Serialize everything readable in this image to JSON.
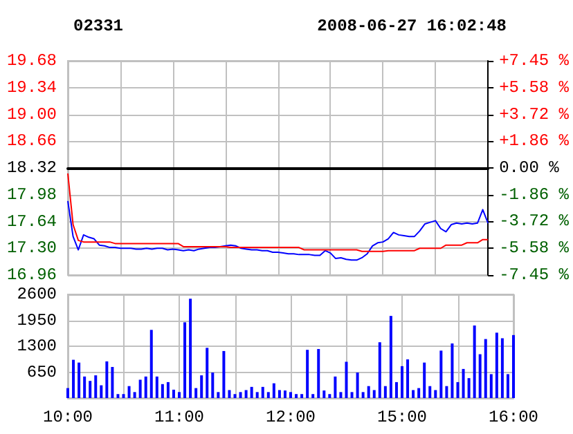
{
  "chart_data": [
    {
      "type": "line",
      "title": "02331",
      "subtitle": "2008-06-27 16:02:48",
      "categories": [
        null,
        null,
        null,
        null,
        null,
        null,
        null,
        null,
        null,
        null,
        null,
        null,
        null,
        null,
        null,
        null,
        null,
        null,
        null,
        null,
        null,
        null,
        null,
        null,
        null,
        null,
        null,
        null,
        null,
        null,
        null,
        null,
        null,
        null,
        null,
        null,
        null,
        null,
        null,
        null,
        null,
        null,
        null,
        null,
        null,
        null,
        null,
        null,
        null,
        null,
        null,
        null,
        null,
        null,
        null,
        null,
        null,
        null,
        null,
        null,
        null,
        null,
        null,
        null,
        null,
        null,
        null,
        null,
        null,
        null,
        null,
        null,
        null,
        null,
        null,
        null,
        null,
        null,
        null,
        null,
        null
      ],
      "series": [
        {
          "color": "#0000ff",
          "values": [
            17.9,
            17.45,
            17.28,
            17.47,
            17.44,
            17.42,
            17.34,
            17.33,
            17.31,
            17.31,
            17.3,
            17.3,
            17.3,
            17.29,
            17.29,
            17.3,
            17.29,
            17.3,
            17.3,
            17.28,
            17.29,
            17.28,
            17.27,
            17.28,
            17.27,
            17.29,
            17.3,
            17.31,
            17.31,
            17.32,
            17.33,
            17.34,
            17.33,
            17.3,
            17.29,
            17.28,
            17.28,
            17.27,
            17.27,
            17.25,
            17.25,
            17.24,
            17.23,
            17.23,
            17.22,
            17.22,
            17.22,
            17.21,
            17.21,
            17.27,
            17.24,
            17.17,
            17.18,
            17.16,
            17.15,
            17.15,
            17.18,
            17.23,
            17.33,
            17.37,
            17.38,
            17.42,
            17.5,
            17.47,
            17.46,
            17.45,
            17.45,
            17.52,
            17.61,
            17.63,
            17.65,
            17.55,
            17.51,
            17.6,
            17.62,
            17.61,
            17.62,
            17.61,
            17.62,
            17.79,
            17.62
          ]
        },
        {
          "color": "#ff0000",
          "values": [
            18.25,
            17.6,
            17.4,
            17.38,
            17.38,
            17.38,
            17.38,
            17.38,
            17.38,
            17.36,
            17.36,
            17.36,
            17.36,
            17.36,
            17.36,
            17.36,
            17.36,
            17.36,
            17.36,
            17.36,
            17.36,
            17.36,
            17.32,
            17.32,
            17.32,
            17.32,
            17.32,
            17.32,
            17.32,
            17.32,
            17.32,
            17.31,
            17.31,
            17.31,
            17.31,
            17.31,
            17.31,
            17.31,
            17.31,
            17.31,
            17.31,
            17.31,
            17.31,
            17.31,
            17.31,
            17.28,
            17.28,
            17.28,
            17.28,
            17.28,
            17.28,
            17.28,
            17.28,
            17.28,
            17.28,
            17.28,
            17.26,
            17.26,
            17.26,
            17.26,
            17.26,
            17.27,
            17.27,
            17.27,
            17.27,
            17.27,
            17.27,
            17.3,
            17.3,
            17.3,
            17.3,
            17.3,
            17.34,
            17.34,
            17.34,
            17.34,
            17.37,
            17.37,
            17.37,
            17.41,
            17.41
          ]
        }
      ],
      "ylim": [
        16.96,
        19.68
      ],
      "yticks": [
        16.96,
        {
          "value": 17.3,
          "label": "17.30"
        },
        17.64,
        17.98,
        18.32,
        18.66,
        {
          "value": 19,
          "label": "19.00"
        },
        19.34,
        19.68
      ],
      "y2lim": [
        -7.45,
        7.45
      ],
      "y2ticks": [
        {
          "value": -7.45,
          "label": "-7.45 %"
        },
        {
          "value": -5.58,
          "label": "-5.58 %"
        },
        {
          "value": -3.72,
          "label": "-3.72 %"
        },
        {
          "value": -1.86,
          "label": "-1.86 %"
        },
        {
          "value": 0,
          "label": "0.00 %"
        },
        {
          "value": 1.86,
          "label": "+1.86 %"
        },
        {
          "value": 3.72,
          "label": "+3.72 %"
        },
        {
          "value": 5.58,
          "label": "+5.58 %"
        },
        {
          "value": 7.45,
          "label": "+7.45 %"
        }
      ],
      "ref_lines": [
        {
          "axis": "y",
          "value": 18.32,
          "color": "#000000"
        }
      ],
      "grid": true,
      "line_style": "solid",
      "tick_labels": "y"
    },
    {
      "type": "bar",
      "categories": [
        "10:00",
        null,
        null,
        null,
        null,
        null,
        null,
        null,
        null,
        null,
        null,
        null,
        null,
        null,
        null,
        null,
        null,
        null,
        null,
        null,
        "11:00",
        null,
        null,
        null,
        null,
        null,
        null,
        null,
        null,
        null,
        null,
        null,
        null,
        null,
        null,
        null,
        null,
        null,
        null,
        null,
        "12:00",
        null,
        null,
        null,
        null,
        null,
        null,
        null,
        null,
        null,
        null,
        null,
        null,
        null,
        null,
        null,
        null,
        null,
        null,
        null,
        "15:00",
        null,
        null,
        null,
        null,
        null,
        null,
        null,
        null,
        null,
        null,
        null,
        null,
        null,
        null,
        null,
        null,
        null,
        null,
        null,
        "16:00"
      ],
      "color": "#0000ff",
      "values": [
        250,
        960,
        890,
        540,
        430,
        570,
        320,
        920,
        780,
        100,
        100,
        300,
        150,
        460,
        540,
        1710,
        540,
        350,
        400,
        210,
        150,
        1900,
        2490,
        250,
        570,
        1260,
        640,
        150,
        1180,
        200,
        100,
        150,
        200,
        280,
        150,
        280,
        150,
        370,
        200,
        190,
        150,
        100,
        100,
        1210,
        100,
        1230,
        190,
        100,
        540,
        150,
        910,
        150,
        640,
        150,
        300,
        200,
        1400,
        300,
        2060,
        400,
        800,
        970,
        200,
        250,
        890,
        300,
        200,
        1190,
        300,
        1370,
        400,
        730,
        500,
        1820,
        1100,
        1480,
        600,
        1640,
        1500,
        600,
        1580
      ],
      "ylim": [
        0,
        2600
      ],
      "yticks": [
        650,
        1300,
        1950,
        2600
      ],
      "grid": true
    }
  ]
}
